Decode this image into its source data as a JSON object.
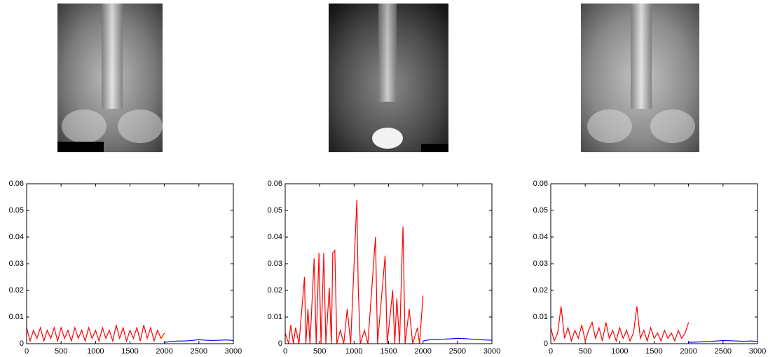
{
  "chart_data": [
    {
      "type": "line",
      "xlim": [
        0,
        3000
      ],
      "ylim": [
        0,
        0.06
      ],
      "xticks": [
        0,
        500,
        1000,
        1500,
        2000,
        2500,
        3000
      ],
      "yticks": [
        0,
        0.01,
        0.02,
        0.03,
        0.04,
        0.05,
        0.06
      ],
      "series": [
        {
          "color": "#ff0000",
          "x": [
            0,
            50,
            100,
            150,
            200,
            250,
            300,
            350,
            400,
            450,
            500,
            550,
            600,
            650,
            700,
            750,
            800,
            850,
            900,
            950,
            1000,
            1050,
            1100,
            1150,
            1200,
            1250,
            1300,
            1350,
            1400,
            1450,
            1500,
            1550,
            1600,
            1650,
            1700,
            1750,
            1800,
            1850,
            1900,
            1950,
            2000
          ],
          "values": [
            0.006,
            0.001,
            0.005,
            0.002,
            0.006,
            0.001,
            0.005,
            0.002,
            0.006,
            0.001,
            0.006,
            0.002,
            0.005,
            0.001,
            0.006,
            0.002,
            0.005,
            0.001,
            0.006,
            0.002,
            0.005,
            0.001,
            0.006,
            0.002,
            0.005,
            0.001,
            0.007,
            0.002,
            0.006,
            0.001,
            0.005,
            0.002,
            0.006,
            0.001,
            0.007,
            0.002,
            0.006,
            0.001,
            0.005,
            0.002,
            0.004
          ]
        },
        {
          "color": "#0000ff",
          "x": [
            2000,
            2100,
            2200,
            2300,
            2400,
            2500,
            2600,
            2700,
            2800,
            2900,
            3000
          ],
          "values": [
            0.0005,
            0.0008,
            0.001,
            0.001,
            0.0012,
            0.0015,
            0.0013,
            0.0012,
            0.0013,
            0.0014,
            0.0012
          ]
        }
      ]
    },
    {
      "type": "line",
      "xlim": [
        0,
        3000
      ],
      "ylim": [
        0,
        0.06
      ],
      "xticks": [
        0,
        500,
        1000,
        1500,
        2000,
        2500,
        3000
      ],
      "yticks": [
        0,
        0.01,
        0.02,
        0.03,
        0.04,
        0.05,
        0.06
      ],
      "series": [
        {
          "color": "#ff0000",
          "x": [
            0,
            50,
            80,
            120,
            150,
            200,
            280,
            300,
            330,
            360,
            420,
            450,
            490,
            520,
            560,
            590,
            640,
            670,
            690,
            720,
            750,
            800,
            850,
            900,
            950,
            1040,
            1060,
            1090,
            1150,
            1200,
            1310,
            1340,
            1450,
            1480,
            1560,
            1590,
            1620,
            1660,
            1690,
            1710,
            1740,
            1800,
            1850,
            1920,
            1950,
            2000
          ],
          "values": [
            0.004,
            0,
            0.007,
            0,
            0.006,
            0,
            0.025,
            0,
            0.013,
            0,
            0.032,
            0,
            0.034,
            0,
            0.034,
            0,
            0.021,
            0,
            0.034,
            0.035,
            0,
            0.005,
            0,
            0.013,
            0,
            0.054,
            0.021,
            0,
            0.005,
            0,
            0.04,
            0,
            0.033,
            0,
            0.02,
            0,
            0.017,
            0,
            0.028,
            0.044,
            0,
            0.013,
            0,
            0.006,
            0,
            0.018
          ]
        },
        {
          "color": "#0000ff",
          "x": [
            2000,
            2100,
            2200,
            2300,
            2400,
            2500,
            2600,
            2700,
            2800,
            2900,
            3000
          ],
          "values": [
            0.001,
            0.0015,
            0.0015,
            0.0017,
            0.0018,
            0.002,
            0.0019,
            0.0017,
            0.0015,
            0.0014,
            0.0013
          ]
        }
      ]
    },
    {
      "type": "line",
      "xlim": [
        0,
        3000
      ],
      "ylim": [
        0,
        0.06
      ],
      "xticks": [
        0,
        500,
        1000,
        1500,
        2000,
        2500,
        3000
      ],
      "yticks": [
        0,
        0.01,
        0.02,
        0.03,
        0.04,
        0.05,
        0.06
      ],
      "series": [
        {
          "color": "#ff0000",
          "x": [
            0,
            50,
            100,
            150,
            200,
            250,
            300,
            350,
            400,
            450,
            500,
            550,
            600,
            650,
            700,
            750,
            800,
            850,
            900,
            950,
            1000,
            1050,
            1100,
            1150,
            1200,
            1250,
            1300,
            1350,
            1400,
            1450,
            1500,
            1550,
            1600,
            1650,
            1700,
            1750,
            1800,
            1850,
            1900,
            1950,
            2000
          ],
          "values": [
            0.006,
            0.001,
            0.004,
            0.014,
            0.002,
            0.006,
            0.001,
            0.005,
            0.002,
            0.007,
            0.001,
            0.005,
            0.008,
            0.002,
            0.006,
            0.001,
            0.008,
            0.002,
            0.005,
            0.001,
            0.006,
            0.002,
            0.005,
            0.001,
            0.004,
            0.014,
            0.002,
            0.005,
            0.001,
            0.006,
            0.002,
            0.004,
            0.001,
            0.005,
            0.002,
            0.004,
            0.001,
            0.005,
            0.002,
            0.004,
            0.008
          ]
        },
        {
          "color": "#0000ff",
          "x": [
            2000,
            2100,
            2200,
            2300,
            2400,
            2500,
            2600,
            2700,
            2800,
            2900,
            3000
          ],
          "values": [
            0.0005,
            0.0006,
            0.0007,
            0.0008,
            0.001,
            0.0012,
            0.0011,
            0.001,
            0.0009,
            0.001,
            0.0009
          ]
        }
      ]
    }
  ]
}
